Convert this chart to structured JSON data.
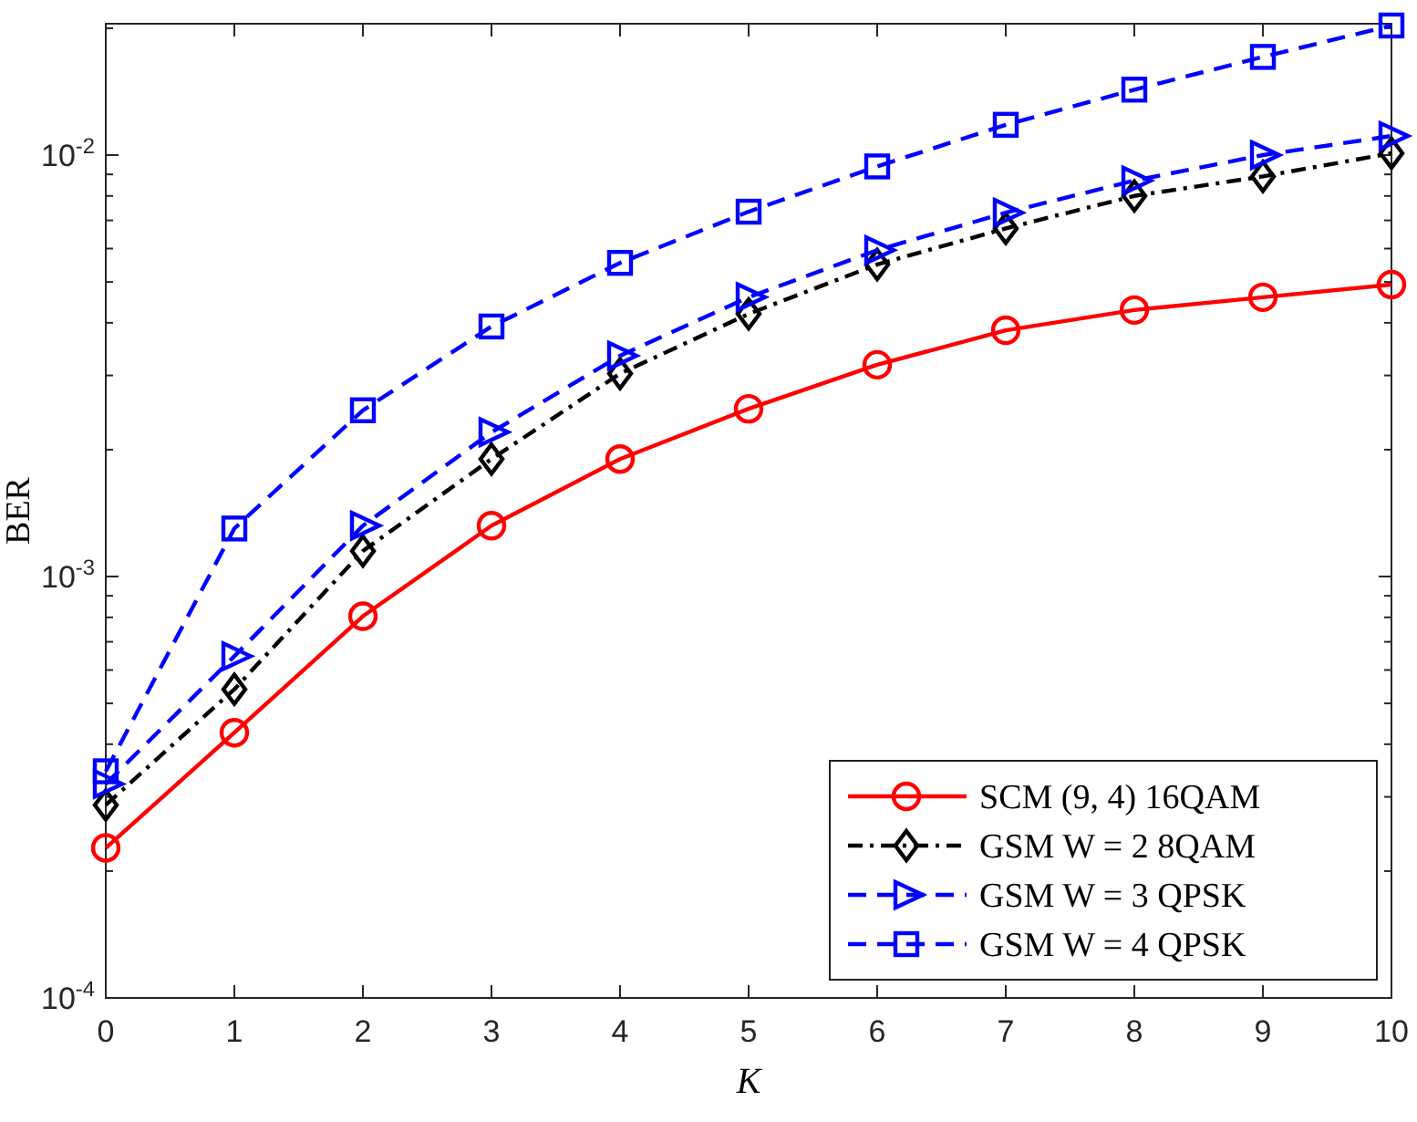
{
  "chart_data": {
    "type": "line",
    "xlabel": "K",
    "ylabel": "BER",
    "log": "y",
    "grid": false,
    "legend": "bottom right",
    "x": [
      0,
      1,
      2,
      3,
      4,
      5,
      6,
      7,
      8,
      9,
      10
    ],
    "xlim": [
      0,
      10
    ],
    "xticks": [
      0,
      1,
      2,
      3,
      4,
      5,
      6,
      7,
      8,
      9,
      10
    ],
    "ylim": [
      0.0001,
      0.0205
    ],
    "yticks": [
      {
        "value": 0.0001,
        "label": "10$^{-4}$"
      },
      {
        "value": 0.0002,
        "label": null
      },
      {
        "value": 0.0003,
        "label": null
      },
      {
        "value": 0.0004,
        "label": null
      },
      {
        "value": 0.0005,
        "label": null
      },
      {
        "value": 0.0006,
        "label": null
      },
      {
        "value": 0.0007,
        "label": null
      },
      {
        "value": 0.0008,
        "label": null
      },
      {
        "value": 0.0009,
        "label": null
      },
      {
        "value": 0.001,
        "label": "10$^{-3}$"
      },
      {
        "value": 0.002,
        "label": null
      },
      {
        "value": 0.003,
        "label": null
      },
      {
        "value": 0.004,
        "label": null
      },
      {
        "value": 0.005,
        "label": null
      },
      {
        "value": 0.006,
        "label": null
      },
      {
        "value": 0.007,
        "label": null
      },
      {
        "value": 0.008,
        "label": null
      },
      {
        "value": 0.009,
        "label": null
      },
      {
        "value": 0.01,
        "label": "10$^{-2}$"
      },
      {
        "value": 0.02,
        "label": null
      }
    ],
    "series": [
      {
        "name": "SCM (9, 4) 16QAM",
        "color": "#ff0000",
        "marker": "circle",
        "line_style": "solid",
        "values": [
          0.000227,
          0.000426,
          0.000805,
          0.00132,
          0.0019,
          0.0025,
          0.00318,
          0.00384,
          0.00429,
          0.0046,
          0.00493
        ]
      },
      {
        "name": "GSM W = 2 8QAM",
        "color": "#000000",
        "marker": "diamond",
        "line_style": "dashdot",
        "values": [
          0.000287,
          0.00054,
          0.00115,
          0.0019,
          0.00303,
          0.0042,
          0.0055,
          0.0067,
          0.008,
          0.0089,
          0.0101
        ]
      },
      {
        "name": "GSM W = 3 QPSK",
        "color": "#0000ff",
        "marker": "triangle",
        "line_style": "dashed",
        "values": [
          0.000322,
          0.000647,
          0.00132,
          0.0022,
          0.00334,
          0.0046,
          0.00595,
          0.0073,
          0.0087,
          0.01,
          0.0111
        ]
      },
      {
        "name": "GSM W = 4 QPSK",
        "color": "#0000ff",
        "marker": "square",
        "line_style": "dashed",
        "values": [
          0.000345,
          0.0013,
          0.00248,
          0.00392,
          0.00555,
          0.00734,
          0.0094,
          0.0118,
          0.0143,
          0.0171,
          0.0203
        ]
      }
    ]
  }
}
